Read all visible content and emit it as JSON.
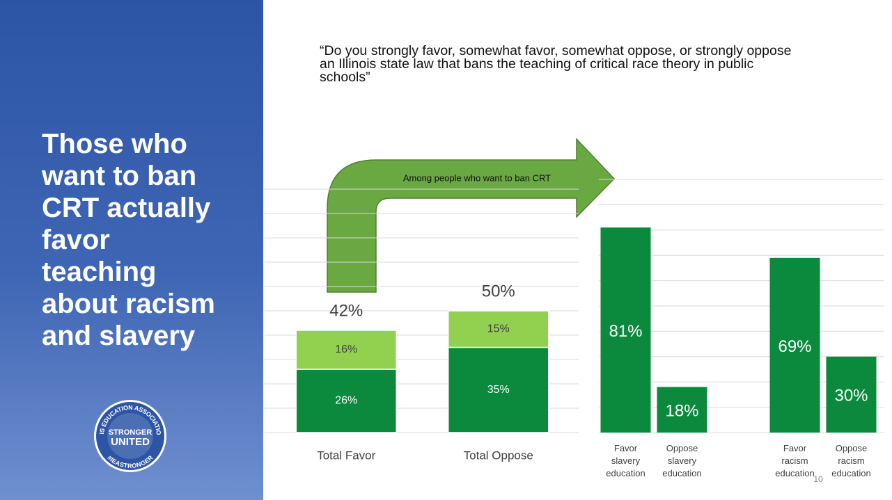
{
  "slide_title": "Those who want to ban CRT actually favor teaching about racism and slavery",
  "question": "“Do you strongly favor, somewhat favor, somewhat oppose, or strongly oppose an Illinois state law that bans the teaching of critical race theory in public schools”",
  "annotation": "Among people who want to ban CRT",
  "logo": {
    "ring_top": "ILLINOIS EDUCATION ASSOCIATION-NEA",
    "ring_bottom": "#IEASTRONGER",
    "line1": "STRONGER",
    "line2": "UNITED"
  },
  "page_number": "10",
  "chart_data": [
    {
      "type": "stacked_bar",
      "categories": [
        "Total Favor",
        "Total Oppose"
      ],
      "series": [
        {
          "color": "#0b8a3e",
          "label_color": "#ffffff",
          "values": [
            26,
            35
          ],
          "value_labels": [
            "26%",
            "35%"
          ]
        },
        {
          "color": "#92d050",
          "label_color": "#404040",
          "values": [
            16,
            15
          ],
          "value_labels": [
            "16%",
            "15%"
          ]
        }
      ],
      "totals": [
        42,
        50
      ],
      "total_labels": [
        "42%",
        "50%"
      ],
      "ylim": [
        0,
        100
      ],
      "yticks": [
        0,
        10,
        20,
        30,
        40,
        50,
        60,
        70,
        80,
        90,
        100
      ],
      "grid": true
    },
    {
      "type": "bar",
      "categories": [
        "Favor slavery education",
        "Oppose slavery education",
        null,
        "Favor racism education",
        "Oppose racism education"
      ],
      "values": [
        81,
        18,
        null,
        69,
        30
      ],
      "value_labels": [
        "81%",
        "18%",
        null,
        "69%",
        "30%"
      ],
      "color": "#0b8a3e",
      "label_color": "#ffffff",
      "ylim": [
        0,
        100
      ],
      "yticks": [
        0,
        10,
        20,
        30,
        40,
        50,
        60,
        70,
        80,
        90,
        100
      ],
      "grid": true
    }
  ]
}
